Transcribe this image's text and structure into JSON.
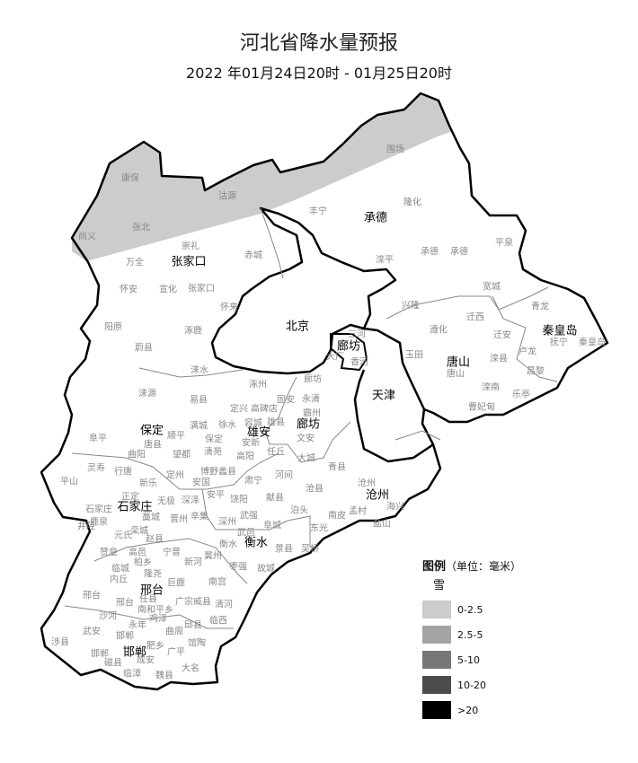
{
  "title": "河北省降水量预报",
  "subtitle": "2022 年01月24日20时 - 01月25日20时",
  "legend": {
    "title": "图例",
    "unit": "（单位：毫米）",
    "type": "雪",
    "items": [
      {
        "label": "0-2.5",
        "color": "#cccccc"
      },
      {
        "label": "2.5-5",
        "color": "#a3a3a3"
      },
      {
        "label": "5-10",
        "color": "#777777"
      },
      {
        "label": "10-20",
        "color": "#4d4d4d"
      },
      {
        "label": ">20",
        "color": "#000000"
      }
    ]
  },
  "forecast_shading": {
    "category": "0-2.5",
    "color": "#cccccc",
    "area": "northern Zhangjiakou and Chengde"
  },
  "cities": [
    "张家口",
    "北京",
    "承德",
    "秦皇岛",
    "唐山",
    "廊坊",
    "天津",
    "保定",
    "雄安",
    "廊坊",
    "沧州",
    "石家庄",
    "衡水",
    "邢台",
    "邯郸"
  ],
  "counties": [
    "康保",
    "沽源",
    "尚义",
    "张北",
    "崇礼",
    "万全",
    "赤城",
    "怀安",
    "宣化",
    "张家口",
    "怀来",
    "阳原",
    "涿鹿",
    "蔚县",
    "围场",
    "隆化",
    "丰宁",
    "平泉",
    "承德",
    "承德",
    "滦平",
    "宽城",
    "兴隆",
    "青龙",
    "迁西",
    "遵化",
    "迁安",
    "抚宁",
    "秦皇岛",
    "三河",
    "玉田",
    "唐山",
    "滦县",
    "卢龙",
    "昌黎",
    "大厂",
    "香河",
    "滦南",
    "乐亭",
    "曹妃甸",
    "涞水",
    "涿州",
    "廊坊",
    "涞源",
    "易县",
    "固安",
    "永清",
    "定兴",
    "高碑店",
    "霸州",
    "满城",
    "徐水",
    "容城",
    "雄县",
    "阜平",
    "顺平",
    "保定",
    "安新",
    "文安",
    "唐县",
    "曲阳",
    "望都",
    "清苑",
    "高阳",
    "任丘",
    "大城",
    "青县",
    "灵寿",
    "行唐",
    "定州",
    "博野蠡县",
    "河间",
    "平山",
    "新乐",
    "安国",
    "肃宁",
    "沧州",
    "沧县",
    "正定",
    "石家庄",
    "无极",
    "深泽",
    "安平",
    "饶阳",
    "献县",
    "鹿泉",
    "藁城",
    "晋州",
    "辛集",
    "深州",
    "武强",
    "泊头",
    "南皮",
    "孟村",
    "海兴",
    "井陉",
    "栾城",
    "元氏",
    "赵县",
    "武邑",
    "阜城",
    "东光",
    "盐山",
    "衡水",
    "景县",
    "吴桥",
    "赞皇",
    "高邑",
    "宁晋",
    "柏乡",
    "新河",
    "冀州",
    "临城",
    "隆尧",
    "枣强",
    "故城",
    "内丘",
    "巨鹿",
    "南宫",
    "邢台",
    "邢台",
    "任县",
    "广宗威县",
    "清河",
    "南和平乡",
    "沙河",
    "鸡泽",
    "永年",
    "邱县",
    "临西",
    "武安",
    "曲周",
    "邯郸",
    "涉县",
    "馆陶",
    "肥乡",
    "广平",
    "邯郸",
    "成安",
    "磁县",
    "大名",
    "临漳",
    "魏县"
  ]
}
